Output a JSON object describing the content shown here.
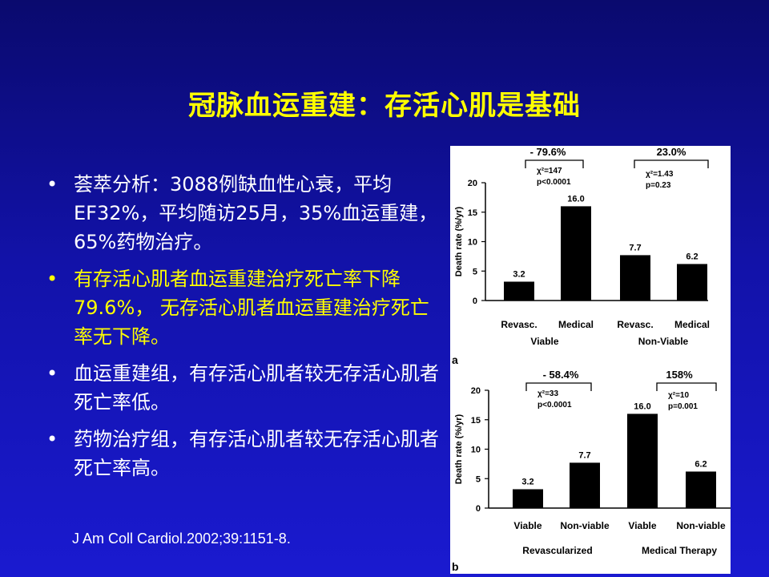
{
  "slide": {
    "title": "冠脉血运重建：存活心肌是基础",
    "bullets": [
      {
        "marker": "•",
        "text": "荟萃分析：3088例缺血性心衰，平均EF32%，平均随访25月，35%血运重建，65%药物治疗。",
        "color": "#ffffff"
      },
      {
        "marker": "•",
        "text": "有存活心肌者血运重建治疗死亡率下降79.6%， 无存活心肌者血运重建治疗死亡率无下降。",
        "color": "#ffff00"
      },
      {
        "marker": "•",
        "text": "血运重建组，有存活心肌者较无存活心肌者死亡率低。",
        "color": "#ffffff"
      },
      {
        "marker": "•",
        "text": "药物治疗组，有存活心肌者较无存活心肌者死亡率高。",
        "color": "#ffffff"
      }
    ],
    "citation": "J Am Coll Cardiol.2002;39:1151-8."
  },
  "chart_data": [
    {
      "type": "bar",
      "panel_label": "a",
      "ylabel": "Death rate (%/yr)",
      "ylim": [
        0,
        20
      ],
      "yticks": [
        "0",
        "5",
        "10",
        "15",
        "20"
      ],
      "categories": [
        "Revasc.",
        "Medical",
        "Revasc.",
        "Medical"
      ],
      "values": [
        3.2,
        16.0,
        7.7,
        6.2
      ],
      "value_labels": [
        "3.2",
        "16.0",
        "7.7",
        "6.2"
      ],
      "groups": [
        "Viable",
        "Non-Viable"
      ],
      "comparisons": [
        {
          "change": "- 79.6%",
          "stat": "χ²=147",
          "p": "p<0.0001"
        },
        {
          "change": "23.0%",
          "stat": "χ²=1.43",
          "p": "p=0.23"
        }
      ]
    },
    {
      "type": "bar",
      "panel_label": "b",
      "ylabel": "Death rate (%/yr)",
      "ylim": [
        0,
        20
      ],
      "yticks": [
        "0",
        "5",
        "10",
        "15",
        "20"
      ],
      "categories": [
        "Viable",
        "Non-viable",
        "Viable",
        "Non-viable"
      ],
      "values": [
        3.2,
        7.7,
        16.0,
        6.2
      ],
      "value_labels": [
        "3.2",
        "7.7",
        "16.0",
        "6.2"
      ],
      "groups": [
        "Revascularized",
        "Medical Therapy"
      ],
      "comparisons": [
        {
          "change": "- 58.4%",
          "stat": "χ²=33",
          "p": "p<0.0001"
        },
        {
          "change": "158%",
          "stat": "χ²=10",
          "p": "p=0.001"
        }
      ]
    }
  ],
  "colors": {
    "background": "#1515b4",
    "title": "#ffff00",
    "text": "#ffffff",
    "highlight": "#ffff00",
    "bars": "#000000",
    "figure_bg": "#ffffff"
  }
}
